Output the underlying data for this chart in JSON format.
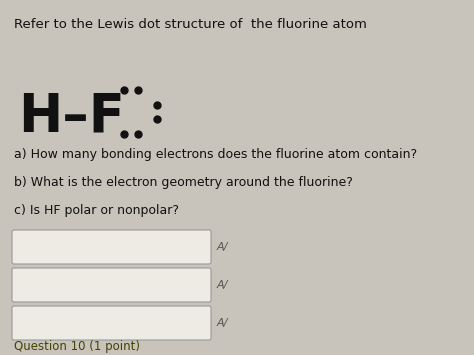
{
  "background_color": "#c8c4bc",
  "title_text": "Refer to the Lewis dot structure of  the fluorine atom",
  "title_fontsize": 9.5,
  "hf_fontsize": 38,
  "dot_color": "#111111",
  "dot_size": 5,
  "questions": [
    "a) How many bonding electrons does the fluorine atom contain?",
    "b) What is the electron geometry around the fluorine?",
    "c) Is HF polar or nonpolar?"
  ],
  "question_fontsize": 9.0,
  "box_color": "#eeebe5",
  "box_edge_color": "#999999",
  "answer_label": "A/",
  "answer_label_fontsize": 8,
  "footer_text": "Question 10 (1 point)",
  "footer_fontsize": 8.5
}
